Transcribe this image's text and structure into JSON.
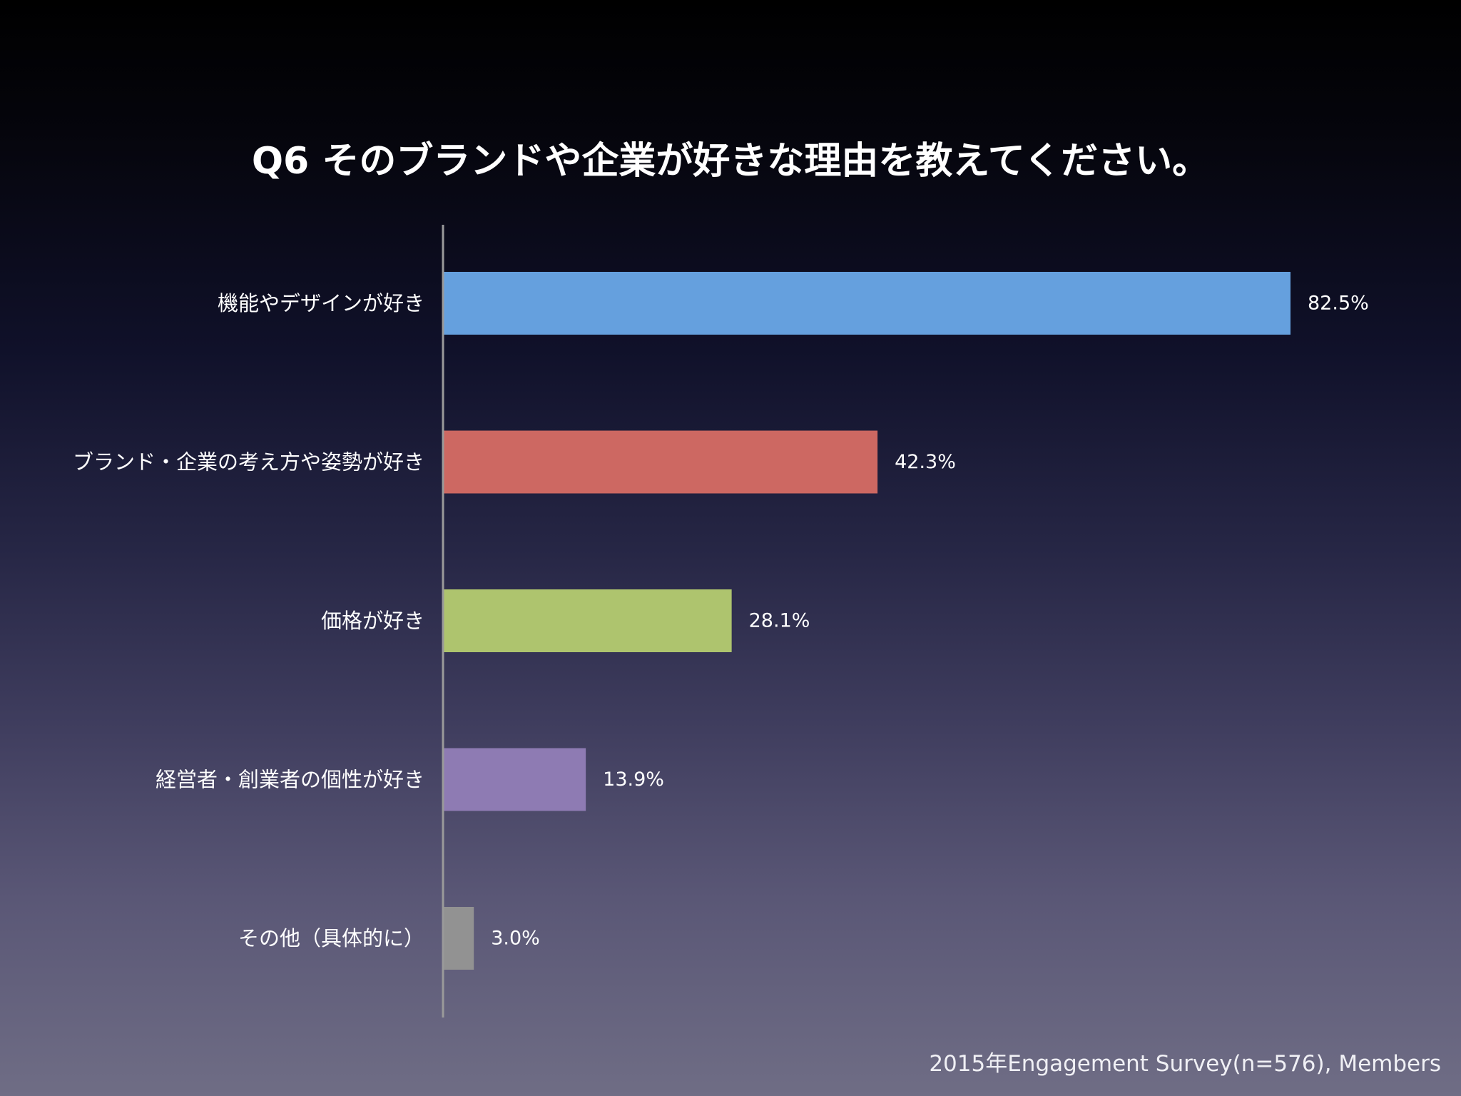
{
  "slide": {
    "title": "Q6 そのブランドや企業が好きな理由を教えてください。",
    "footnote": "2015年Engagement Survey(n=576), Members"
  },
  "chart_data": {
    "type": "bar",
    "orientation": "horizontal",
    "title": "Q6 そのブランドや企業が好きな理由を教えてください。",
    "categories": [
      "機能やデザインが好き",
      "ブランド・企業の考え方や姿勢が好き",
      "価格が好き",
      "経営者・創業者の個性が好き",
      "その他（具体的に）"
    ],
    "values": [
      82.5,
      42.3,
      28.1,
      13.9,
      3.0
    ],
    "value_labels": [
      "82.5%",
      "42.3%",
      "28.1%",
      "13.9%",
      "3.0%"
    ],
    "unit": "%",
    "colors": [
      "#65a0de",
      "#cd6862",
      "#aec46e",
      "#8e7bb3",
      "#929292"
    ],
    "xlim": [
      0,
      100
    ],
    "grid": false,
    "legend": "none"
  }
}
